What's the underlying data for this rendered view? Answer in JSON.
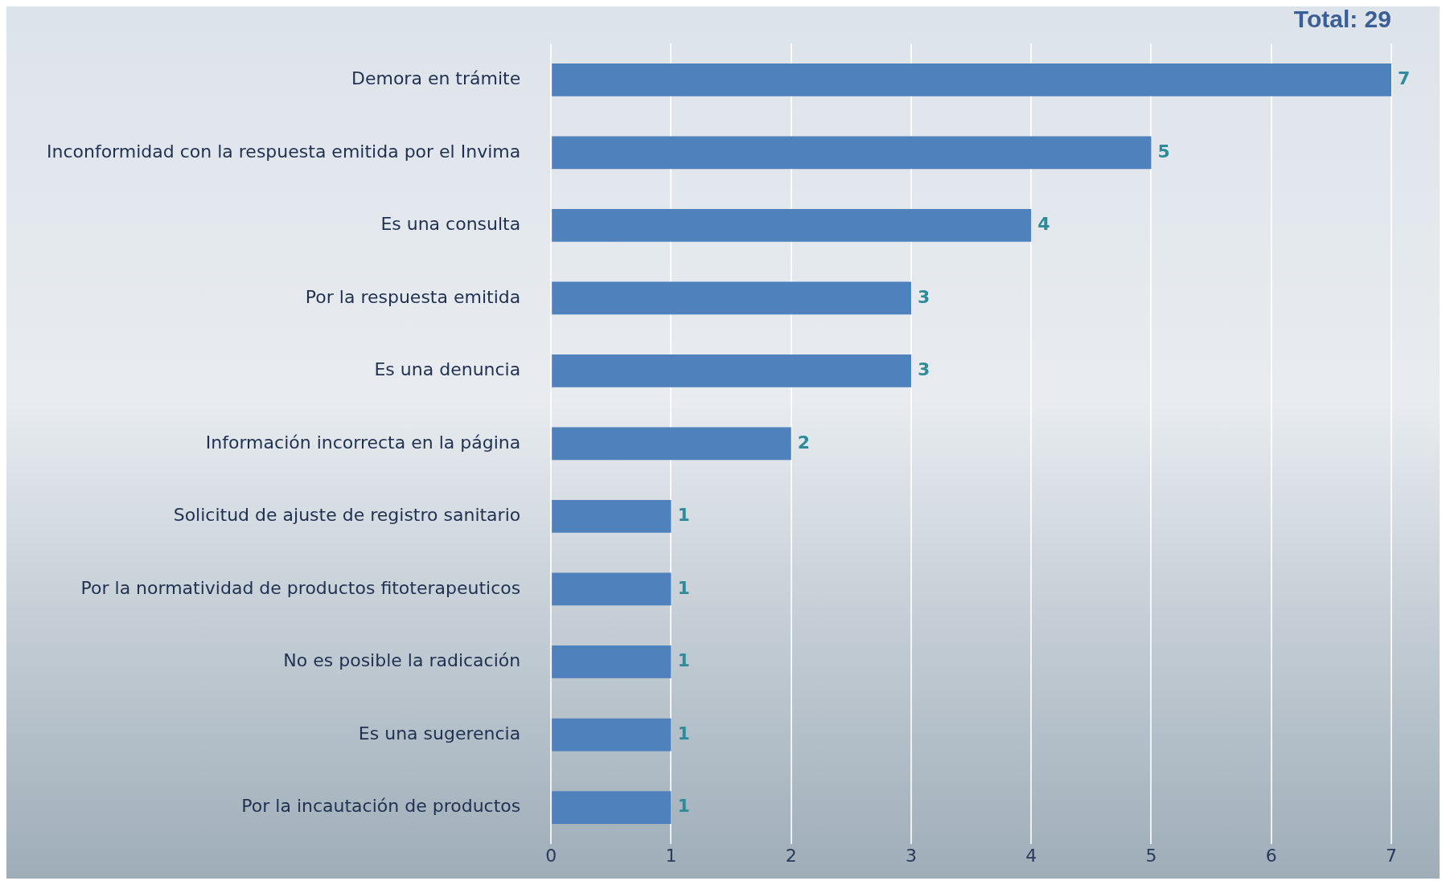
{
  "chart_data": {
    "type": "bar",
    "orientation": "horizontal",
    "title": "Total: 29",
    "categories": [
      "Demora en trámite",
      "Inconformidad con la respuesta emitida por el Invima",
      "Es una consulta",
      "Por la respuesta emitida",
      "Es una denuncia",
      "Información incorrecta en la página",
      "Solicitud de ajuste de registro sanitario",
      "Por la normatividad de productos fitoterapeuticos",
      "No es posible la radicación",
      "Es una sugerencia",
      "Por la incautación de productos"
    ],
    "values": [
      7,
      5,
      4,
      3,
      3,
      2,
      1,
      1,
      1,
      1,
      1
    ],
    "color": "#4f81bd",
    "xlim": [
      0,
      7
    ],
    "xticks": [
      0,
      1,
      2,
      3,
      4,
      5,
      6,
      7
    ],
    "grid": "x",
    "legend": false,
    "data_labels": true
  }
}
